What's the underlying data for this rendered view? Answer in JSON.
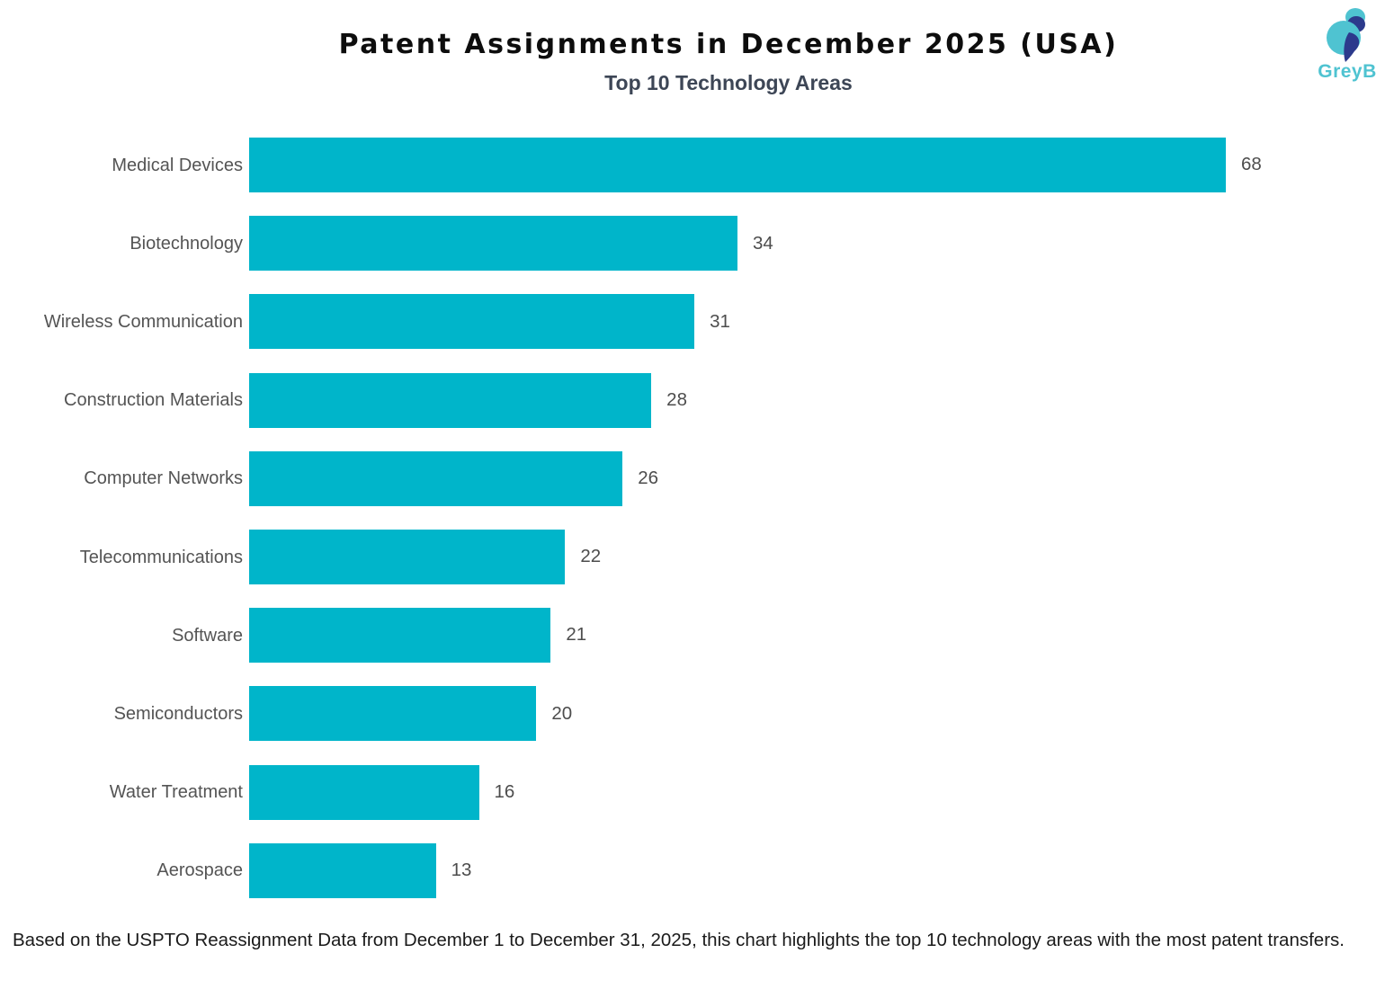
{
  "header": {
    "title": "Patent Assignments in December 2025 (USA)",
    "subtitle": "Top 10 Technology Areas"
  },
  "logo": {
    "brand": "GreyB",
    "teal": "#4fc3d1",
    "navy": "#2c3a8c"
  },
  "chart_data": {
    "type": "bar",
    "orientation": "horizontal",
    "title": "Patent Assignments in December 2025 (USA)",
    "subtitle": "Top 10 Technology Areas",
    "categories": [
      "Medical Devices",
      "Biotechnology",
      "Wireless Communication",
      "Construction Materials",
      "Computer Networks",
      "Telecommunications",
      "Software",
      "Semiconductors",
      "Water Treatment",
      "Aerospace"
    ],
    "values": [
      68,
      34,
      31,
      28,
      26,
      22,
      21,
      20,
      16,
      13
    ],
    "bar_color": "#00b5ca",
    "value_label_position": "outside-right",
    "xlim": [
      0,
      68
    ],
    "grid": false,
    "legend": false
  },
  "footer": {
    "caption": "Based on the USPTO Reassignment Data from December 1 to December 31, 2025, this chart highlights the top 10 technology areas with the most patent transfers."
  }
}
